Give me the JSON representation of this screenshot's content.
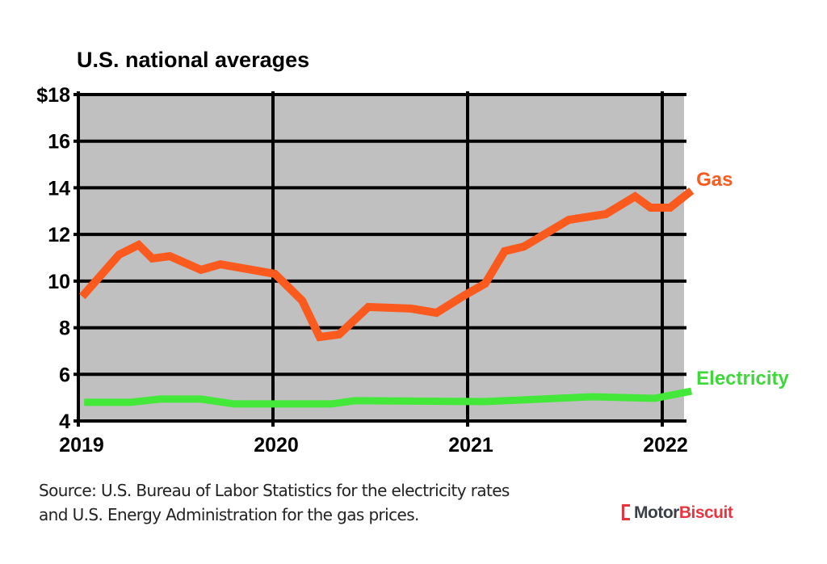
{
  "chart_data": {
    "type": "line",
    "title": "U.S. national averages",
    "xlabel": "",
    "ylabel": "",
    "xlim": [
      2019.0,
      2022.11
    ],
    "ylim": [
      4,
      18
    ],
    "x_ticks": [
      {
        "value": 2019,
        "label": "2019"
      },
      {
        "value": 2020,
        "label": "2020"
      },
      {
        "value": 2021,
        "label": "2021"
      },
      {
        "value": 2022,
        "label": "2022"
      }
    ],
    "y_ticks": [
      {
        "value": 18,
        "label": "$18"
      },
      {
        "value": 16,
        "label": "16"
      },
      {
        "value": 14,
        "label": "14"
      },
      {
        "value": 12,
        "label": "12"
      },
      {
        "value": 10,
        "label": "10"
      },
      {
        "value": 8,
        "label": "8"
      },
      {
        "value": 6,
        "label": "6"
      },
      {
        "value": 4,
        "label": "4"
      }
    ],
    "grid": true,
    "legend": "inline-right",
    "series": [
      {
        "name": "Gas",
        "color": "#fb5a1e",
        "x": [
          2019.02,
          2019.21,
          2019.31,
          2019.38,
          2019.47,
          2019.63,
          2019.73,
          2020.01,
          2020.15,
          2020.24,
          2020.34,
          2020.49,
          2020.71,
          2020.84,
          2020.98,
          2021.09,
          2021.19,
          2021.29,
          2021.52,
          2021.71,
          2021.86,
          2021.94,
          2022.04,
          2022.15
        ],
        "values": [
          9.34,
          11.14,
          11.55,
          10.97,
          11.07,
          10.48,
          10.72,
          10.31,
          9.16,
          7.6,
          7.71,
          8.89,
          8.82,
          8.64,
          9.37,
          9.89,
          11.28,
          11.48,
          12.63,
          12.87,
          13.63,
          13.15,
          13.15,
          13.88
        ]
      },
      {
        "name": "Electricity",
        "color": "#44e83a",
        "x": [
          2019.03,
          2019.27,
          2019.42,
          2019.63,
          2019.8,
          2020.3,
          2020.42,
          2021.09,
          2021.64,
          2021.96,
          2022.15
        ],
        "values": [
          4.8,
          4.8,
          4.94,
          4.94,
          4.73,
          4.73,
          4.87,
          4.83,
          5.04,
          4.97,
          5.28
        ]
      }
    ]
  },
  "source": {
    "line1": "Source: U.S. Bureau of Labor Statistics for the electricity rates",
    "line2": "and U.S. Energy Administration for the gas prices."
  },
  "logo": {
    "part1": "Motor",
    "part2": "Biscuit"
  }
}
